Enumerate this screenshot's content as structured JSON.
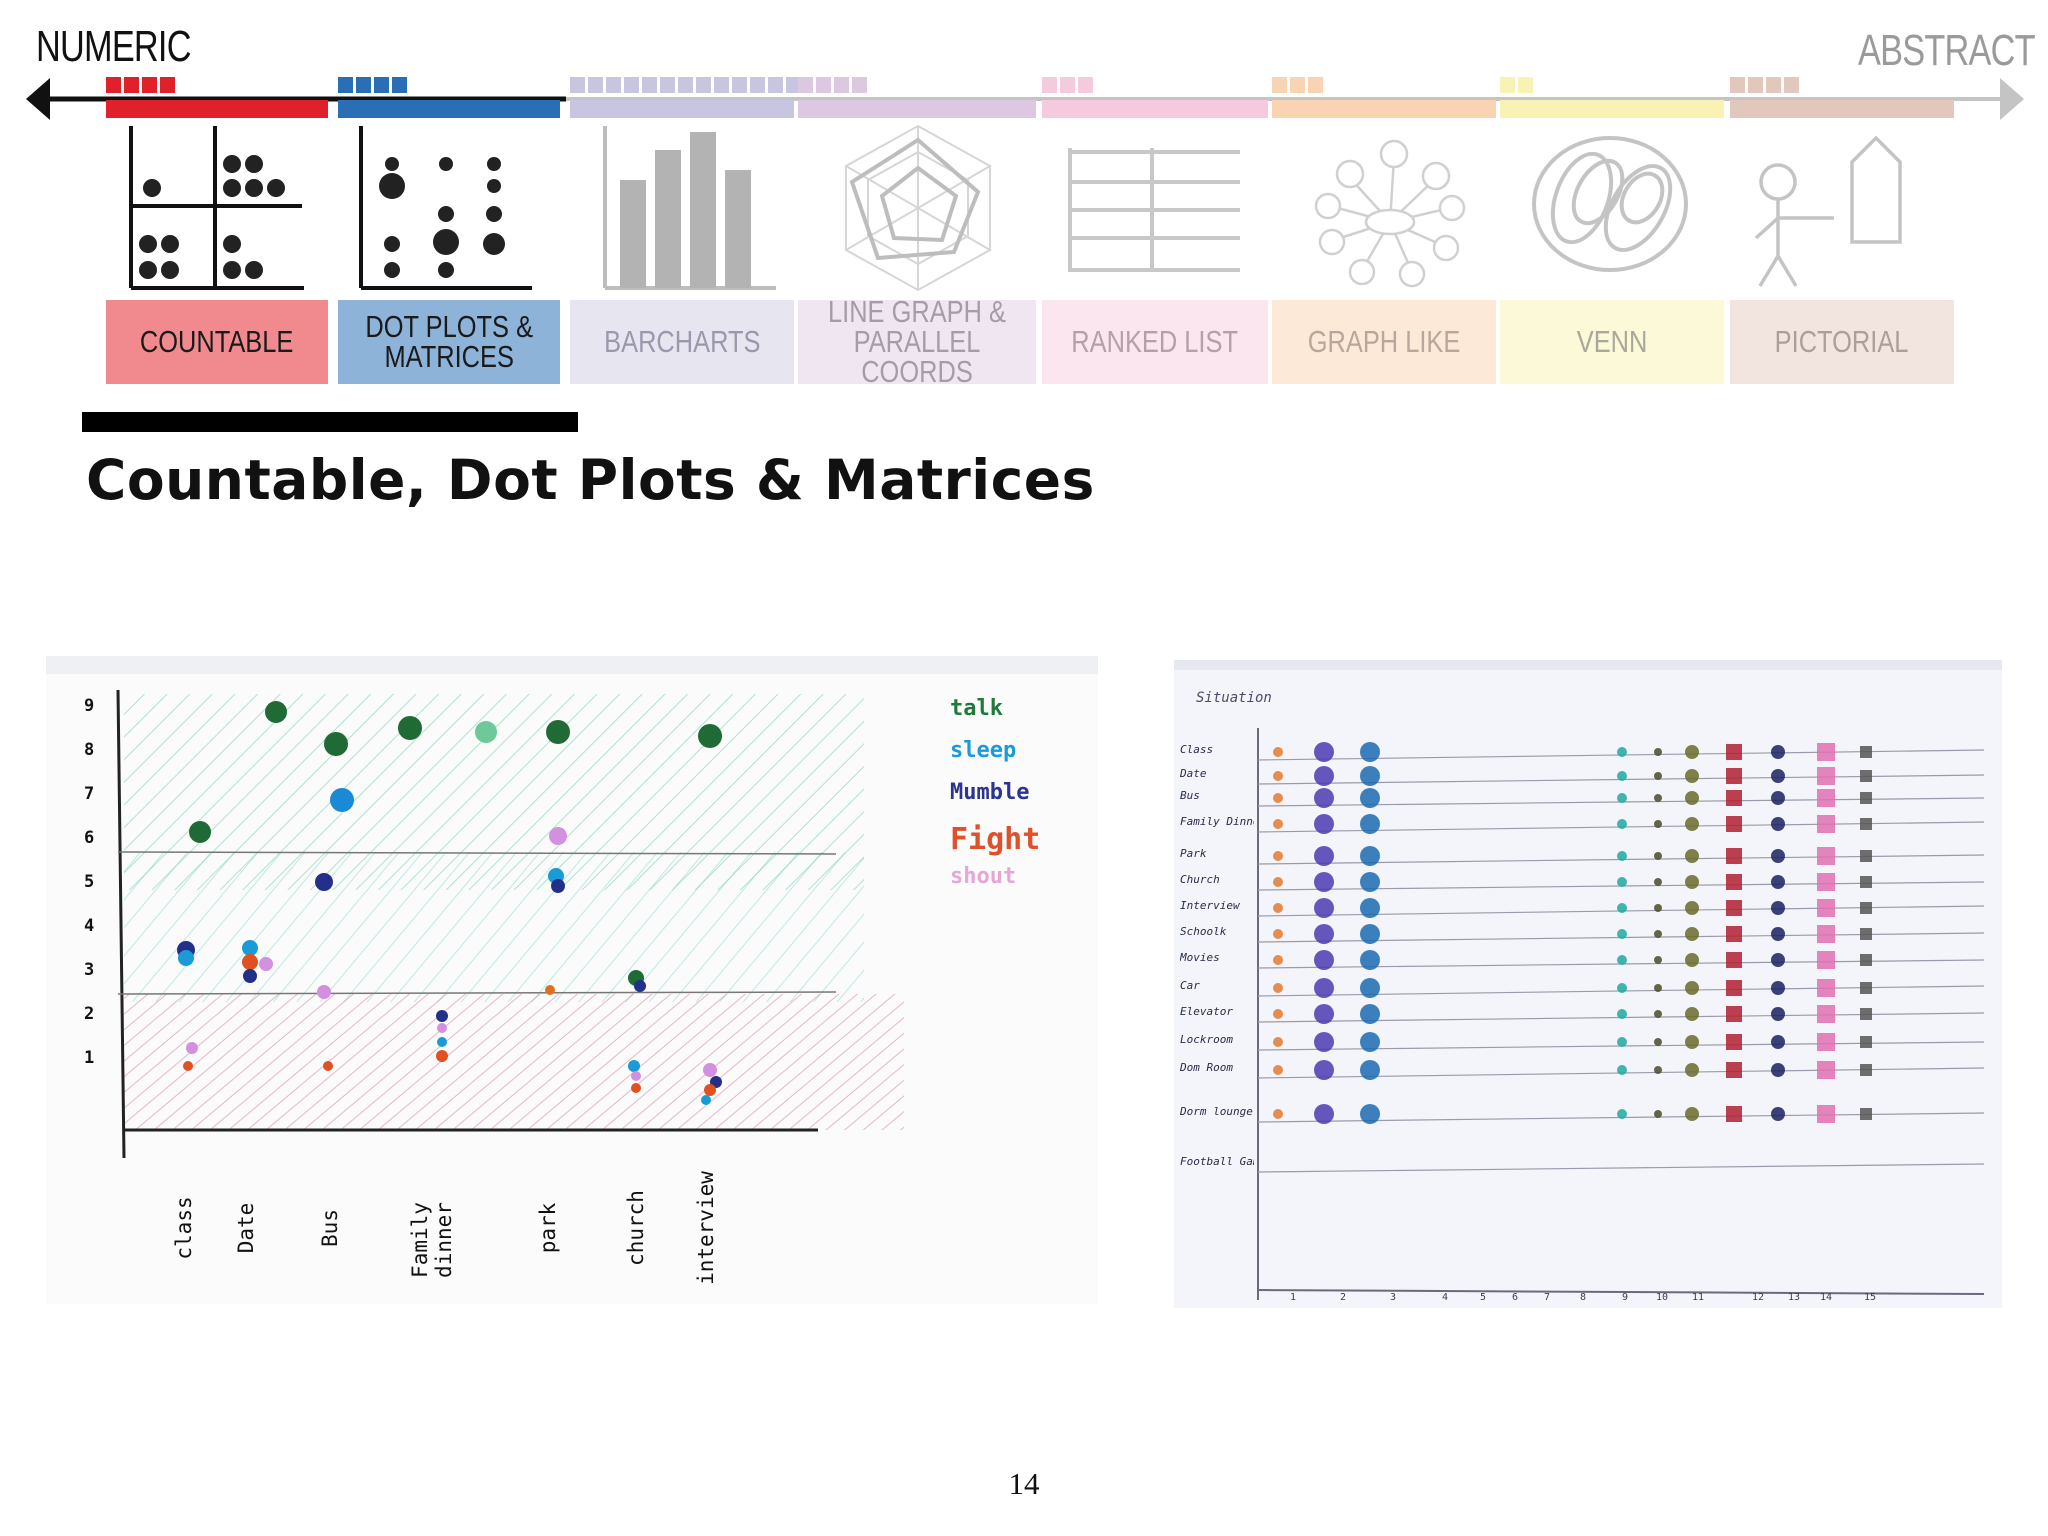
{
  "spectrum": {
    "left_label": "NUMERIC",
    "right_label": "ABSTRACT"
  },
  "categories": [
    {
      "label": "COUNTABLE",
      "color": "#e0202a",
      "box_color": "#f18a8f",
      "text_color": "#1a1a1a",
      "icon": "countable-quadrant-dots-icon"
    },
    {
      "label": "DOT PLOTS &\nMATRICES",
      "color": "#2a6fb5",
      "box_color": "#8db3d8",
      "text_color": "#1a1a1a",
      "icon": "dot-plot-icon"
    },
    {
      "label": "BARCHARTS",
      "color": "#c7c5df",
      "box_color": "#e6e5f0",
      "text_color": "#9a98ad",
      "icon": "bar-chart-icon"
    },
    {
      "label": "LINE GRAPH &\nPARALLEL COORDS",
      "color": "#ddc8e2",
      "box_color": "#efe6f2",
      "text_color": "#a79aa9",
      "icon": "radar-chart-icon"
    },
    {
      "label": "RANKED LIST",
      "color": "#f5cade",
      "box_color": "#fbe5ef",
      "text_color": "#b3a0a8",
      "icon": "ranked-list-icon"
    },
    {
      "label": "GRAPH LIKE",
      "color": "#f9d4b2",
      "box_color": "#fde9d8",
      "text_color": "#b8a79a",
      "icon": "node-graph-icon"
    },
    {
      "label": "VENN",
      "color": "#f8f2b4",
      "box_color": "#fcf9d8",
      "text_color": "#aaa89a",
      "icon": "venn-icon"
    },
    {
      "label": "PICTORIAL",
      "color": "#e2c7bd",
      "box_color": "#f2e4df",
      "text_color": "#ad9e99",
      "icon": "pictorial-person-house-icon"
    }
  ],
  "heading": "Countable, Dot Plots & Matrices",
  "left_sketch": {
    "y_ticks": [
      "9",
      "8",
      "7",
      "6",
      "5",
      "4",
      "3",
      "2",
      "1"
    ],
    "x_labels": [
      "class",
      "Date",
      "Bus",
      "Family dinner",
      "park",
      "church",
      "interview"
    ],
    "legend": [
      {
        "label": "talk",
        "color": "#1f7a3a"
      },
      {
        "label": "sleep",
        "color": "#1a9ad6"
      },
      {
        "label": "Mumble",
        "color": "#2a3590"
      },
      {
        "label": "Fight",
        "color": "#e0502a"
      },
      {
        "label": "shout",
        "color": "#e3a7d8"
      }
    ]
  },
  "right_sketch": {
    "header": "Situation",
    "rows": [
      "Class",
      "Date",
      "Bus",
      "Family Dinner",
      "Park",
      "Church",
      "Interview",
      "Schoolk",
      "Movies",
      "Car",
      "Elevator",
      "Lockroom",
      "Dom Room",
      "Dorm lounge",
      "Football Game"
    ],
    "x_ticks": [
      "1",
      "2",
      "3",
      "4",
      "5",
      "6",
      "7",
      "8",
      "9",
      "10",
      "11",
      "12",
      "13",
      "14",
      "15"
    ]
  },
  "page_number": "14"
}
